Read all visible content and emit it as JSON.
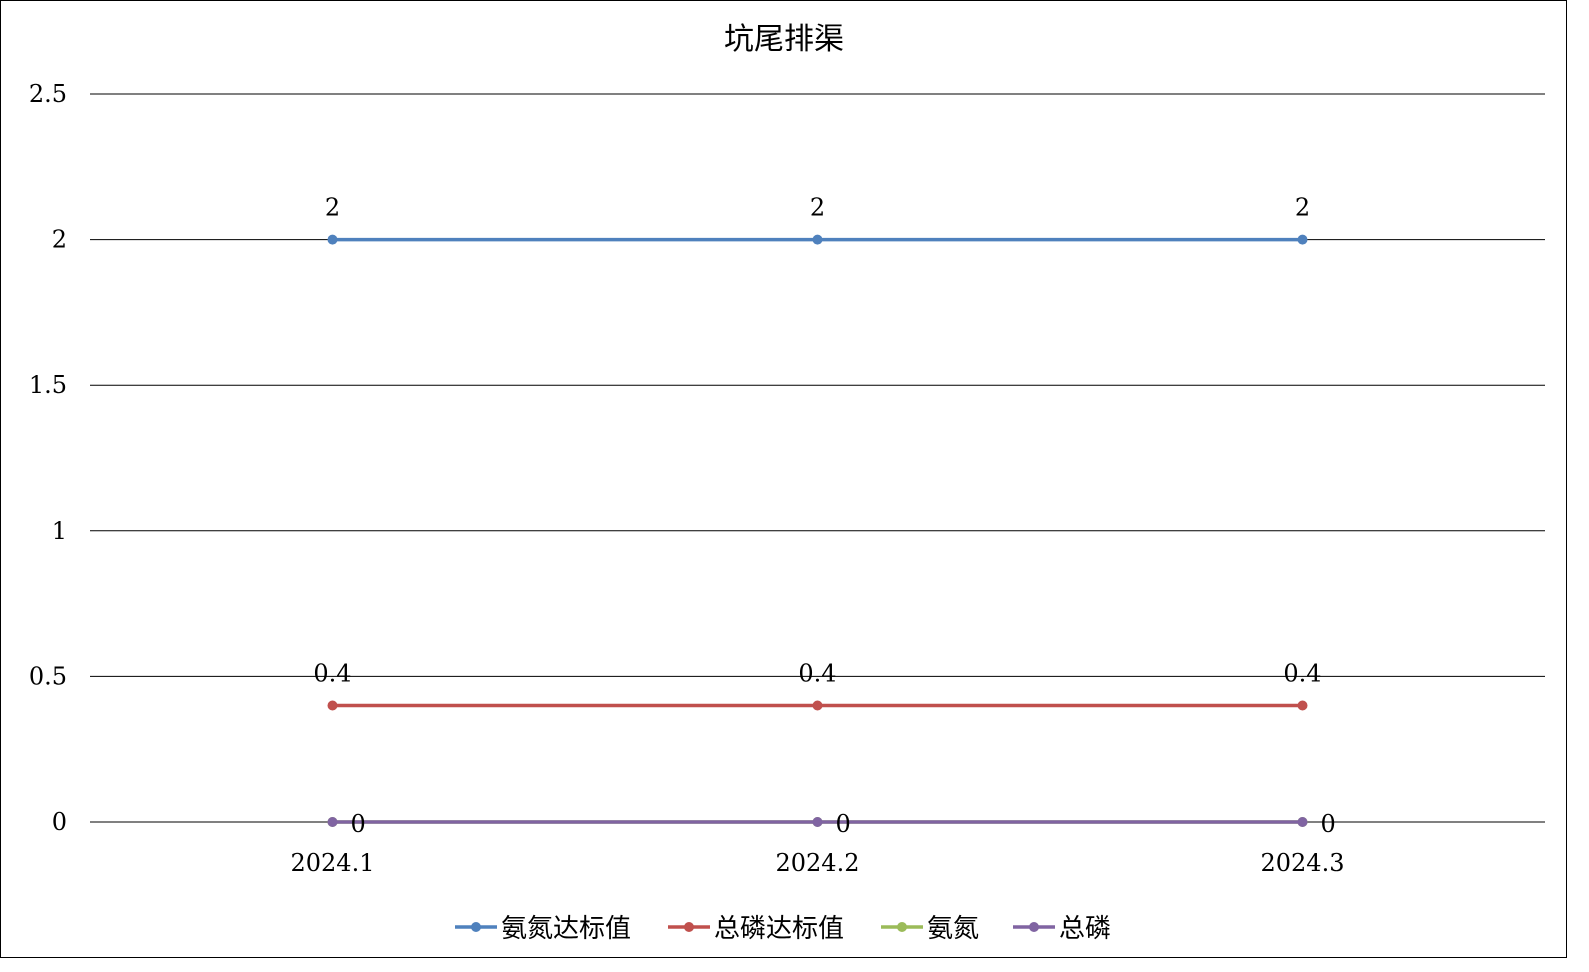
{
  "chart_data": {
    "type": "line",
    "title": "坑尾排渠",
    "xlabel": "",
    "ylabel": "",
    "categories": [
      "2024.1",
      "2024.2",
      "2024.3"
    ],
    "ylim": [
      0,
      2.5
    ],
    "yticks": [
      0,
      0.5,
      1,
      1.5,
      2,
      2.5
    ],
    "ytick_labels": [
      "0",
      "0.5",
      "1",
      "1.5",
      "2",
      "2.5"
    ],
    "grid": true,
    "legend_position": "bottom",
    "series": [
      {
        "name": "氨氮达标值",
        "values": [
          2,
          2,
          2
        ],
        "labels": [
          "2",
          "2",
          "2"
        ],
        "color": "#4f81bd"
      },
      {
        "name": "总磷达标值",
        "values": [
          0.4,
          0.4,
          0.4
        ],
        "labels": [
          "0.4",
          "0.4",
          "0.4"
        ],
        "color": "#c0504d"
      },
      {
        "name": "氨氮",
        "values": [
          0,
          0,
          0
        ],
        "labels": [],
        "color": "#9bbb59"
      },
      {
        "name": "总磷",
        "values": [
          0,
          0,
          0
        ],
        "labels": [
          "0",
          "0",
          "0"
        ],
        "color": "#8064a2"
      }
    ]
  }
}
